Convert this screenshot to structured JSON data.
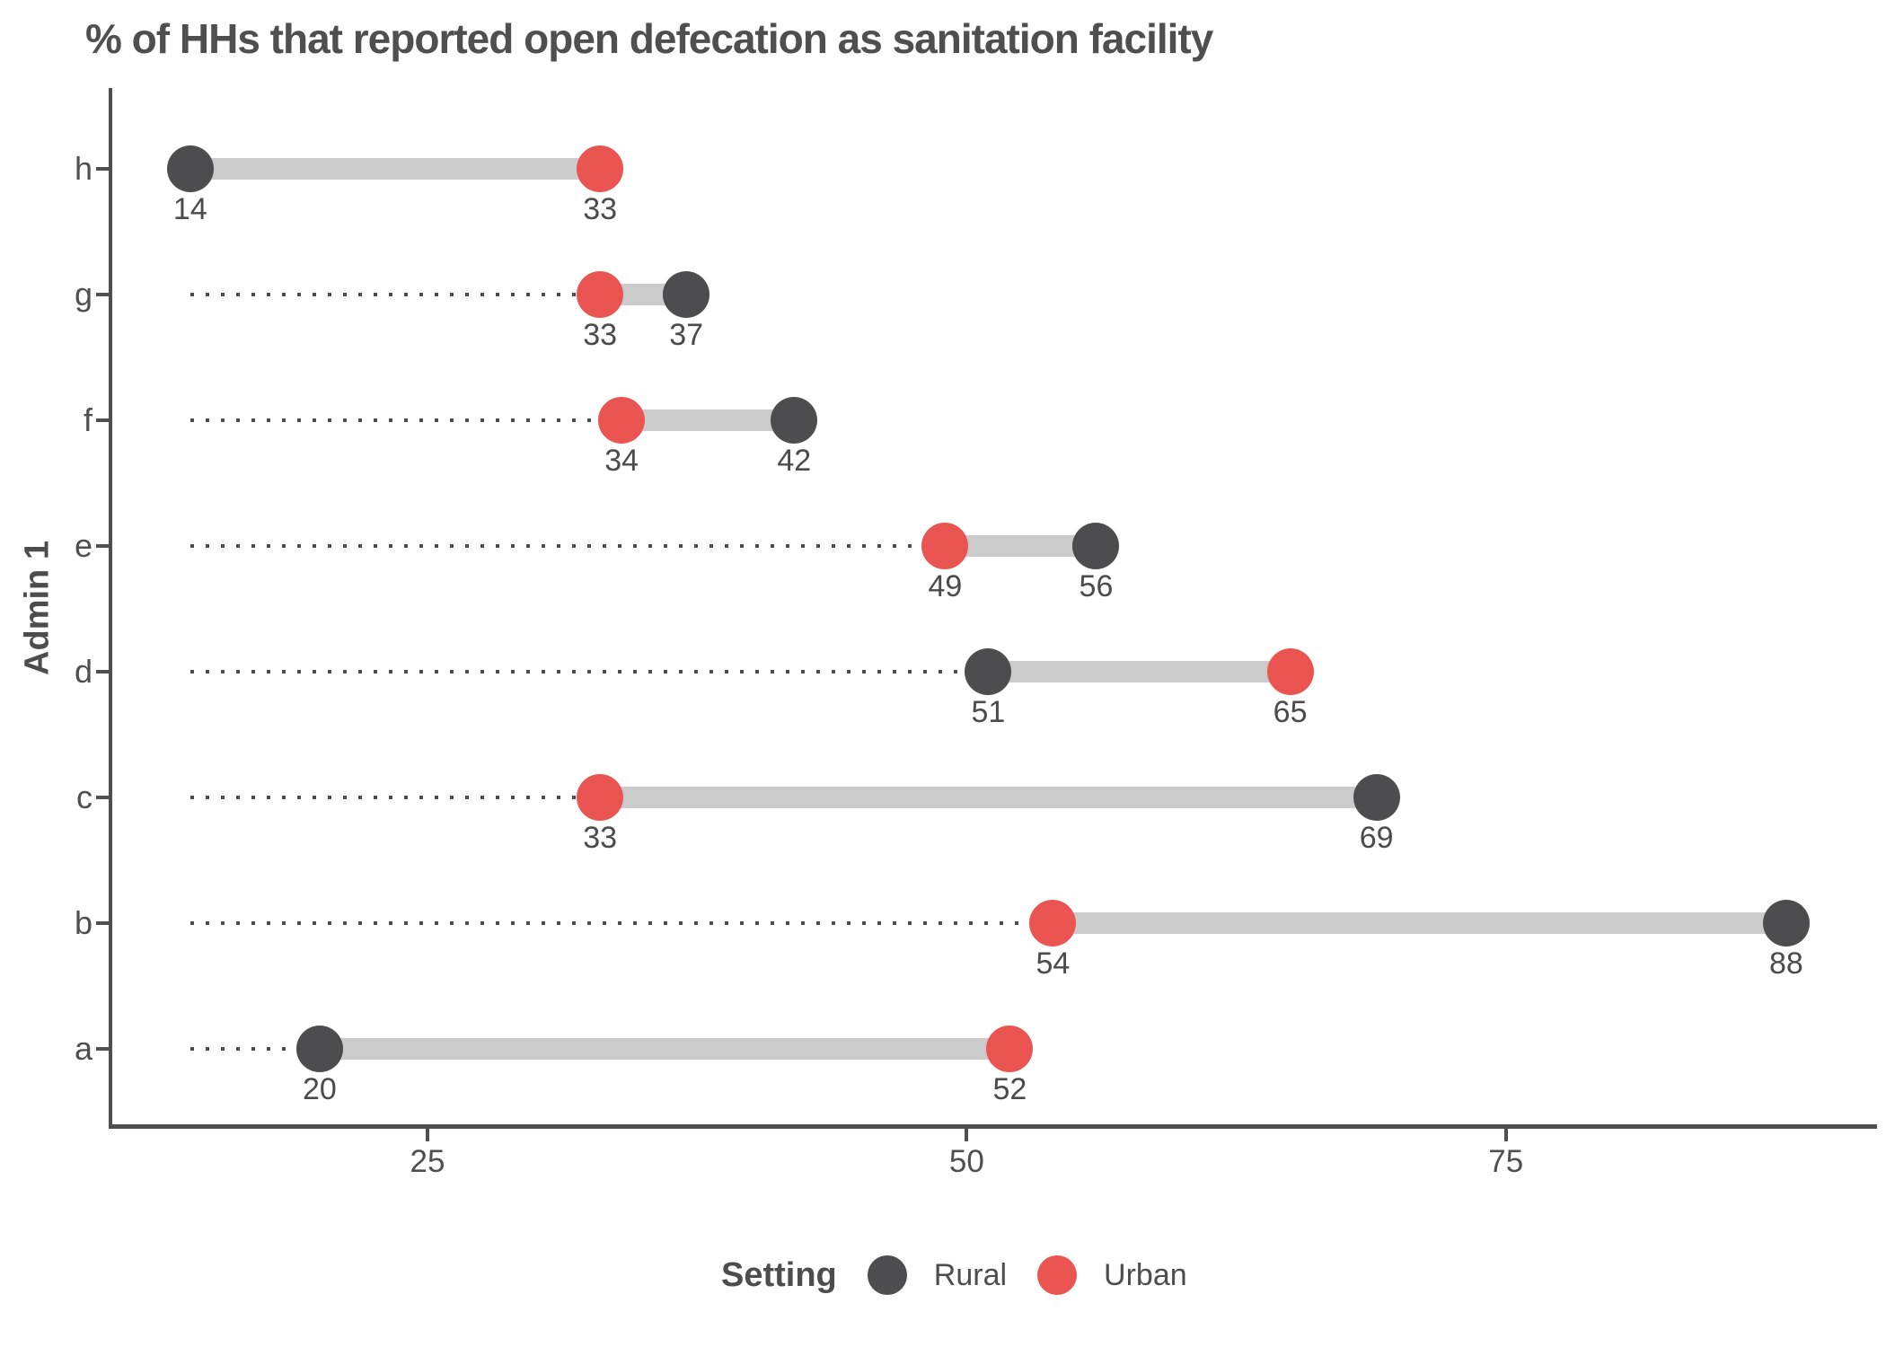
{
  "title": "% of HHs that reported open defecation as sanitation facility",
  "legend": {
    "title": "Setting",
    "items": [
      {
        "label": "Rural",
        "color": "#4d4d4f"
      },
      {
        "label": "Urban",
        "color": "#ea5552"
      }
    ]
  },
  "colors": {
    "rural": "#4d4d4f",
    "urban": "#ea5552",
    "connector": "#cbcbcb",
    "leader": "#4d4d4d",
    "axis": "#4f4f4f",
    "text": "#4b4b4b"
  },
  "chart_data": {
    "type": "dumbbell",
    "title": "% of HHs that reported open defecation as sanitation facility",
    "xlabel": "",
    "ylabel": "Admin 1",
    "categories": [
      "h",
      "g",
      "f",
      "e",
      "d",
      "c",
      "b",
      "a"
    ],
    "series": [
      {
        "name": "Rural",
        "color": "#4d4d4f",
        "values": [
          14,
          37,
          42,
          56,
          51,
          69,
          88,
          20
        ]
      },
      {
        "name": "Urban",
        "color": "#ea5552",
        "values": [
          33,
          33,
          34,
          49,
          65,
          33,
          54,
          52
        ]
      }
    ],
    "x_ticks": [
      25,
      50,
      75
    ],
    "xlim": [
      10.3,
      92.0
    ],
    "leader_origin": 14,
    "grid": "none",
    "legend_position": "bottom",
    "data_labels": true
  }
}
